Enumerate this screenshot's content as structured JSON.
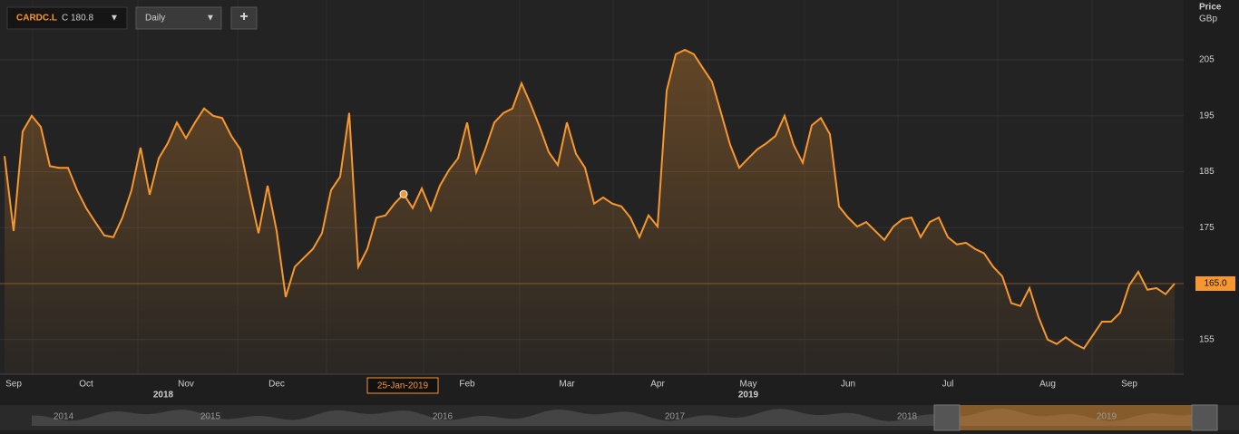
{
  "header": {
    "symbol": "CARDC.L",
    "close": "C 180.8",
    "interval": "Daily",
    "add": "+"
  },
  "chart_data": {
    "type": "line",
    "y_label": "Price",
    "y_unit": "GBp",
    "categories": [
      null,
      "Sep",
      null,
      null,
      null,
      null,
      null,
      null,
      null,
      "Oct",
      null,
      null,
      null,
      null,
      null,
      null,
      null,
      null,
      null,
      null,
      "Nov",
      null,
      null,
      null,
      null,
      null,
      null,
      null,
      null,
      null,
      "Dec",
      null,
      null,
      null,
      null,
      null,
      null,
      null,
      null,
      null,
      null,
      null,
      null,
      null,
      null,
      null,
      null,
      null,
      null,
      null,
      null,
      "Feb",
      null,
      null,
      null,
      null,
      null,
      null,
      null,
      null,
      null,
      null,
      "Mar",
      null,
      null,
      null,
      null,
      null,
      null,
      null,
      null,
      null,
      "Apr",
      null,
      null,
      null,
      null,
      null,
      null,
      null,
      null,
      null,
      "May",
      null,
      null,
      null,
      null,
      null,
      null,
      null,
      null,
      null,
      null,
      "Jun",
      null,
      null,
      null,
      null,
      null,
      null,
      null,
      null,
      null,
      null,
      "Jul",
      null,
      null,
      null,
      null,
      null,
      null,
      null,
      null,
      null,
      null,
      "Aug",
      null,
      null,
      null,
      null,
      null,
      null,
      null,
      null,
      "Sep",
      null,
      null,
      null,
      null,
      null
    ],
    "year_labels": [
      "2018",
      "2019"
    ],
    "series": [
      {
        "name": "CARDC.L",
        "color": "#f7972f",
        "values": [
          187.8,
          174.4,
          192.2,
          195,
          193,
          186,
          185.7,
          185.7,
          181.7,
          178.5,
          176,
          173.6,
          173.3,
          176.8,
          181.7,
          189.3,
          180.9,
          187.4,
          190.1,
          193.8,
          191,
          193.8,
          196.3,
          195,
          194.6,
          191.4,
          189,
          181.4,
          174,
          182.5,
          174.4,
          162.6,
          168,
          169.6,
          171.2,
          174,
          181.7,
          184.1,
          195.5,
          168,
          171.2,
          176.8,
          177.2,
          179.3,
          181,
          178.5,
          182,
          178.1,
          182.5,
          185.3,
          187.4,
          193.8,
          184.9,
          189,
          193.8,
          195.5,
          196.3,
          200.8,
          197.1,
          193,
          188.5,
          186.2,
          193.8,
          188.2,
          185.7,
          179.3,
          180.4,
          179.3,
          178.8,
          176.8,
          173.3,
          177.2,
          175.2,
          199.5,
          206,
          206.8,
          206,
          203.5,
          201.1,
          195.5,
          189.8,
          185.7,
          187.4,
          189,
          190.1,
          191.4,
          195,
          189.8,
          186.6,
          193.3,
          194.6,
          191.7,
          178.8,
          176.8,
          175.2,
          176,
          174.4,
          172.8,
          175.2,
          176.5,
          176.8,
          173.3,
          176,
          176.8,
          173.3,
          172,
          172.3,
          171.2,
          170.4,
          168,
          166.3,
          161.5,
          161,
          164.2,
          159,
          155,
          154.2,
          155.4,
          154.2,
          153.4,
          155.8,
          158.2,
          158.2,
          159.8,
          164.7,
          167.1,
          163.9,
          164.2,
          163.1,
          165
        ]
      }
    ],
    "last_price_label": "165.0",
    "tooltip": "25-Jan-2019",
    "ylim": [
      148.8,
      215.7
    ],
    "yticks": [
      155,
      165,
      175,
      185,
      195,
      205
    ],
    "grid": true
  },
  "navigator": {
    "years": [
      "2014",
      "2015",
      "2016",
      "2017",
      "2018",
      "2019"
    ]
  }
}
